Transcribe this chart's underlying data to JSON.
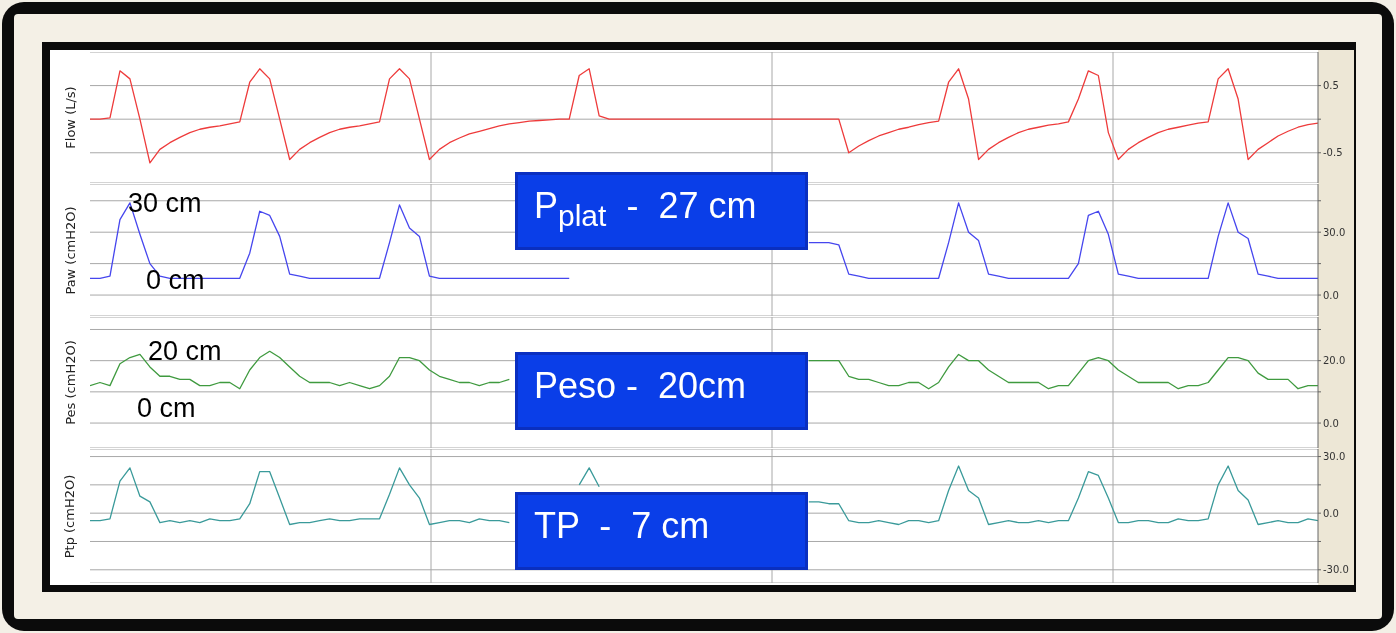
{
  "chart_data": [
    {
      "type": "line",
      "ylabel": "Flow (L/s)",
      "ylim": [
        -0.95,
        1.0
      ],
      "yticks": [
        -0.5,
        {
          "value": 0,
          "label": null
        },
        0.5
      ],
      "grid": true,
      "categories": [
        null,
        null,
        null,
        null,
        null,
        null,
        null,
        null,
        null,
        null,
        null,
        null,
        null,
        null,
        null,
        null,
        null,
        null,
        null,
        null,
        null,
        null,
        null,
        null,
        null,
        null,
        null,
        null,
        null,
        null,
        null,
        null,
        null,
        null,
        null,
        null,
        null,
        null,
        null,
        null,
        null,
        null,
        null,
        null,
        null,
        null,
        null,
        null,
        null,
        null,
        null,
        null,
        null,
        null,
        null,
        null,
        null,
        null,
        null,
        null,
        null,
        null,
        null,
        null,
        null,
        null,
        null,
        null,
        null,
        null,
        null,
        null,
        null,
        null,
        null,
        null,
        null,
        null,
        null,
        null,
        null,
        null,
        null,
        null,
        null,
        null,
        null,
        null,
        null,
        null,
        null,
        null,
        null,
        null,
        null,
        null,
        null,
        null,
        null,
        null,
        null,
        null,
        null,
        null,
        null,
        null,
        null,
        null,
        null,
        null,
        null,
        null,
        null,
        null,
        null,
        null,
        null,
        null,
        null,
        null,
        null,
        null,
        null,
        null
      ],
      "series": [
        {
          "color": "#ee3b3b",
          "values": [
            0,
            0,
            0.02,
            0.72,
            0.6,
            0,
            -0.65,
            -0.45,
            -0.35,
            -0.27,
            -0.2,
            -0.15,
            -0.12,
            -0.1,
            -0.07,
            -0.04,
            0.55,
            0.75,
            0.6,
            0,
            -0.6,
            -0.45,
            -0.35,
            -0.27,
            -0.2,
            -0.15,
            -0.12,
            -0.1,
            -0.07,
            -0.04,
            0.6,
            0.75,
            0.6,
            0,
            -0.6,
            -0.45,
            -0.35,
            -0.28,
            -0.22,
            -0.18,
            -0.14,
            -0.1,
            -0.07,
            -0.05,
            -0.03,
            -0.02,
            -0.01,
            0,
            0,
            0.65,
            0.75,
            0.05,
            0,
            0,
            0,
            0,
            0,
            0,
            0,
            0,
            0,
            0,
            0,
            0,
            0,
            0,
            0,
            0,
            0,
            0,
            0,
            0,
            0,
            0,
            0,
            0,
            -0.5,
            -0.4,
            -0.32,
            -0.25,
            -0.2,
            -0.15,
            -0.12,
            -0.08,
            -0.05,
            -0.03,
            0.55,
            0.75,
            0.3,
            -0.6,
            -0.45,
            -0.35,
            -0.27,
            -0.2,
            -0.15,
            -0.12,
            -0.09,
            -0.07,
            -0.04,
            0.3,
            0.72,
            0.65,
            -0.2,
            -0.6,
            -0.45,
            -0.35,
            -0.27,
            -0.2,
            -0.15,
            -0.12,
            -0.09,
            -0.06,
            -0.04,
            0.6,
            0.75,
            0.3,
            -0.6,
            -0.45,
            -0.35,
            -0.25,
            -0.18,
            -0.12,
            -0.08,
            -0.06
          ]
        }
      ]
    },
    {
      "type": "line",
      "ylabel": "Paw (cmH2O)",
      "ylim": [
        -10,
        53
      ],
      "yticks": [
        {
          "value": 0,
          "label": "0.0"
        },
        {
          "value": 15,
          "label": null
        },
        {
          "value": 30,
          "label": "30.0"
        },
        {
          "value": 45,
          "label": null
        }
      ],
      "grid": true,
      "categories": [
        null,
        null,
        null,
        null,
        null,
        null,
        null,
        null,
        null,
        null,
        null,
        null,
        null,
        null,
        null,
        null,
        null,
        null,
        null,
        null,
        null,
        null,
        null,
        null,
        null,
        null,
        null,
        null,
        null,
        null,
        null,
        null,
        null,
        null,
        null,
        null,
        null,
        null,
        null,
        null,
        null,
        null,
        null,
        null,
        null,
        null,
        null,
        null,
        null,
        null,
        null,
        null,
        null,
        null,
        null,
        null,
        null,
        null,
        null,
        null,
        null,
        null,
        null,
        null,
        null,
        null,
        null,
        null,
        null,
        null,
        null,
        null,
        null,
        null,
        null,
        null,
        null,
        null,
        null,
        null,
        null,
        null,
        null,
        null,
        null,
        null,
        null,
        null,
        null,
        null,
        null,
        null,
        null,
        null,
        null,
        null,
        null,
        null,
        null,
        null,
        null,
        null,
        null,
        null,
        null,
        null,
        null,
        null,
        null,
        null,
        null,
        null,
        null,
        null,
        null,
        null,
        null,
        null,
        null,
        null,
        null,
        null,
        null,
        null
      ],
      "annotations": [
        "30 cm",
        "0 cm",
        "P$_{plat}$  -  27 cm"
      ],
      "series": [
        {
          "color": "#4646ee",
          "values": [
            8,
            8,
            9,
            36,
            44,
            29,
            15,
            9,
            8,
            8,
            8,
            8,
            8,
            8,
            8,
            8,
            20,
            40,
            38,
            28,
            10,
            9,
            8,
            8,
            8,
            8,
            8,
            8,
            8,
            8,
            25,
            43,
            32,
            28,
            9,
            8,
            8,
            8,
            8,
            8,
            8,
            8,
            8,
            8,
            8,
            8,
            8,
            8,
            8,
            null,
            null,
            null,
            null,
            null,
            null,
            null,
            null,
            null,
            null,
            null,
            null,
            null,
            null,
            null,
            null,
            null,
            null,
            null,
            null,
            null,
            null,
            null,
            25,
            25,
            25,
            24,
            10,
            9,
            8,
            8,
            8,
            8,
            8,
            8,
            8,
            8,
            25,
            44,
            30,
            26,
            10,
            9,
            8,
            8,
            8,
            8,
            8,
            8,
            8,
            15,
            38,
            40,
            29,
            10,
            9,
            8,
            8,
            8,
            8,
            8,
            8,
            8,
            8,
            28,
            44,
            30,
            27,
            10,
            9,
            8,
            8,
            8,
            8,
            8
          ]
        }
      ]
    },
    {
      "type": "line",
      "ylabel": "Pes (cmH2O)",
      "ylim": [
        -8,
        34
      ],
      "yticks": [
        {
          "value": 0,
          "label": "0.0"
        },
        {
          "value": 10,
          "label": null
        },
        {
          "value": 20,
          "label": "20.0"
        },
        {
          "value": 30,
          "label": null
        }
      ],
      "grid": true,
      "categories": [
        null,
        null,
        null,
        null,
        null,
        null,
        null,
        null,
        null,
        null,
        null,
        null,
        null,
        null,
        null,
        null,
        null,
        null,
        null,
        null,
        null,
        null,
        null,
        null,
        null,
        null,
        null,
        null,
        null,
        null,
        null,
        null,
        null,
        null,
        null,
        null,
        null,
        null,
        null,
        null,
        null,
        null,
        null,
        null,
        null,
        null,
        null,
        null,
        null,
        null,
        null,
        null,
        null,
        null,
        null,
        null,
        null,
        null,
        null,
        null,
        null,
        null,
        null,
        null,
        null,
        null,
        null,
        null,
        null,
        null,
        null,
        null,
        null,
        null,
        null,
        null,
        null,
        null,
        null,
        null,
        null,
        null,
        null,
        null,
        null,
        null,
        null,
        null,
        null,
        null,
        null,
        null,
        null,
        null,
        null,
        null,
        null,
        null,
        null,
        null,
        null,
        null,
        null,
        null,
        null,
        null,
        null,
        null,
        null,
        null,
        null,
        null,
        null,
        null,
        null,
        null,
        null,
        null,
        null,
        null,
        null,
        null,
        null,
        null
      ],
      "annotations": [
        "20 cm",
        "0 cm",
        "Peso -  20cm"
      ],
      "series": [
        {
          "color": "#3f9a3f",
          "values": [
            12,
            13,
            12,
            19,
            21,
            22,
            18,
            15,
            15,
            14,
            14,
            12,
            12,
            13,
            13,
            11,
            17,
            21,
            23,
            21,
            18,
            15,
            13,
            13,
            13,
            12,
            13,
            12,
            11,
            12,
            15,
            21,
            21,
            20,
            17,
            15,
            14,
            13,
            13,
            12,
            13,
            13,
            14,
            null,
            null,
            null,
            null,
            null,
            null,
            null,
            null,
            null,
            null,
            null,
            null,
            null,
            null,
            null,
            null,
            null,
            null,
            null,
            null,
            null,
            null,
            null,
            null,
            null,
            null,
            null,
            null,
            null,
            20,
            20,
            20,
            20,
            15,
            14,
            14,
            13,
            12,
            12,
            13,
            13,
            11,
            13,
            18,
            22,
            20,
            20,
            17,
            15,
            13,
            13,
            13,
            13,
            11,
            12,
            12,
            16,
            20,
            21,
            20,
            17,
            15,
            13,
            13,
            13,
            13,
            11,
            12,
            12,
            13,
            17,
            21,
            21,
            20,
            16,
            14,
            14,
            14,
            11,
            12,
            12
          ]
        }
      ]
    },
    {
      "type": "line",
      "ylabel": "Ptp (cmH2O)",
      "ylim": [
        -37,
        34
      ],
      "yticks": [
        {
          "value": -30,
          "label": "-30.0"
        },
        {
          "value": -15,
          "label": null
        },
        {
          "value": 0,
          "label": "0.0"
        },
        {
          "value": 15,
          "label": null
        },
        {
          "value": 30,
          "label": "30.0"
        }
      ],
      "grid": true,
      "categories": [
        null,
        null,
        null,
        null,
        null,
        null,
        null,
        null,
        null,
        null,
        null,
        null,
        null,
        null,
        null,
        null,
        null,
        null,
        null,
        null,
        null,
        null,
        null,
        null,
        null,
        null,
        null,
        null,
        null,
        null,
        null,
        null,
        null,
        null,
        null,
        null,
        null,
        null,
        null,
        null,
        null,
        null,
        null,
        null,
        null,
        null,
        null,
        null,
        null,
        null,
        null,
        null,
        null,
        null,
        null,
        null,
        null,
        null,
        null,
        null,
        null,
        null,
        null,
        null,
        null,
        null,
        null,
        null,
        null,
        null,
        null,
        null,
        null,
        null,
        null,
        null,
        null,
        null,
        null,
        null,
        null,
        null,
        null,
        null,
        null,
        null,
        null,
        null,
        null,
        null,
        null,
        null,
        null,
        null,
        null,
        null,
        null,
        null,
        null,
        null,
        null,
        null,
        null,
        null,
        null,
        null,
        null,
        null,
        null,
        null,
        null,
        null,
        null,
        null,
        null,
        null,
        null,
        null,
        null,
        null,
        null,
        null,
        null,
        null
      ],
      "annotations": [
        "TP  -  7 cm"
      ],
      "series": [
        {
          "color": "#3a9a9a",
          "values": [
            -4,
            -4,
            -3,
            17,
            24,
            9,
            6,
            -5,
            -4,
            -5,
            -4,
            -5,
            -3,
            -4,
            -4,
            -3,
            5,
            22,
            22,
            8,
            -6,
            -5,
            -5,
            -4,
            -3,
            -4,
            -4,
            -3,
            -3,
            -3,
            10,
            24,
            15,
            8,
            -6,
            -5,
            -4,
            -4,
            -5,
            -3,
            -4,
            -4,
            -5,
            null,
            null,
            null,
            null,
            null,
            null,
            15,
            24,
            14,
            null,
            null,
            null,
            null,
            null,
            null,
            null,
            null,
            null,
            null,
            null,
            null,
            null,
            null,
            null,
            null,
            null,
            null,
            null,
            null,
            6,
            6,
            5,
            5,
            -4,
            -5,
            -5,
            -4,
            -5,
            -6,
            -4,
            -4,
            -5,
            -4,
            12,
            25,
            12,
            8,
            -6,
            -5,
            -4,
            -5,
            -5,
            -4,
            -5,
            -4,
            -4,
            8,
            22,
            20,
            8,
            -5,
            -5,
            -4,
            -4,
            -5,
            -5,
            -3,
            -4,
            -4,
            -3,
            15,
            25,
            12,
            7,
            -6,
            -5,
            -4,
            -5,
            -5,
            -3,
            -4
          ]
        }
      ]
    }
  ]
}
